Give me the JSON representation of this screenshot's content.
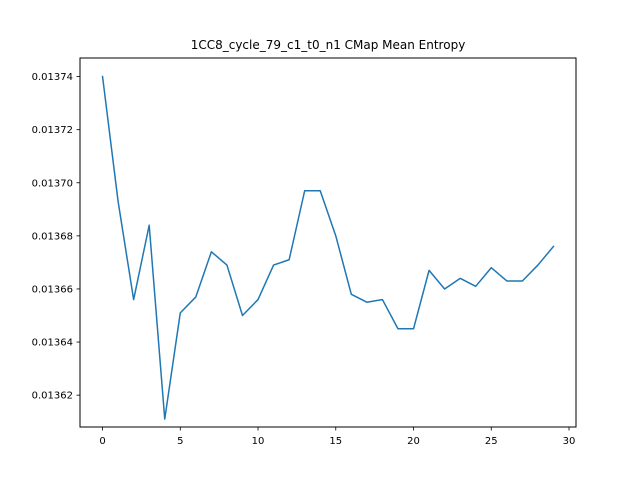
{
  "chart_data": {
    "type": "line",
    "title": "1CC8_cycle_79_c1_t0_n1 CMap Mean Entropy",
    "xlabel": "",
    "ylabel": "",
    "xlim": [
      -1.45,
      30.45
    ],
    "ylim": [
      0.013608,
      0.013747
    ],
    "xticks": [
      0,
      5,
      10,
      15,
      20,
      25,
      30
    ],
    "xtick_labels": [
      "0",
      "5",
      "10",
      "15",
      "20",
      "25",
      "30"
    ],
    "yticks": [
      0.01362,
      0.01364,
      0.01366,
      0.01368,
      0.0137,
      0.01372,
      0.01374
    ],
    "ytick_labels": [
      "0.01362",
      "0.01364",
      "0.01366",
      "0.01368",
      "0.01370",
      "0.01372",
      "0.01374"
    ],
    "grid": false,
    "line_color": "#1f77b4",
    "series": [
      {
        "x": [
          0,
          1,
          2,
          3,
          4,
          5,
          6,
          7,
          8,
          9,
          10,
          11,
          12,
          13,
          14,
          15,
          16,
          17,
          18,
          19,
          20,
          21,
          22,
          23,
          24,
          25,
          26,
          27,
          28,
          29
        ],
        "values": [
          0.01374,
          0.013693,
          0.013656,
          0.013684,
          0.013611,
          0.013651,
          0.013657,
          0.013674,
          0.013669,
          0.01365,
          0.013656,
          0.013669,
          0.013671,
          0.013697,
          0.013697,
          0.01368,
          0.013658,
          0.013655,
          0.013656,
          0.013645,
          0.013645,
          0.013667,
          0.01366,
          0.013664,
          0.013661,
          0.013668,
          0.013663,
          0.013663,
          0.013669,
          0.013676
        ]
      }
    ]
  }
}
